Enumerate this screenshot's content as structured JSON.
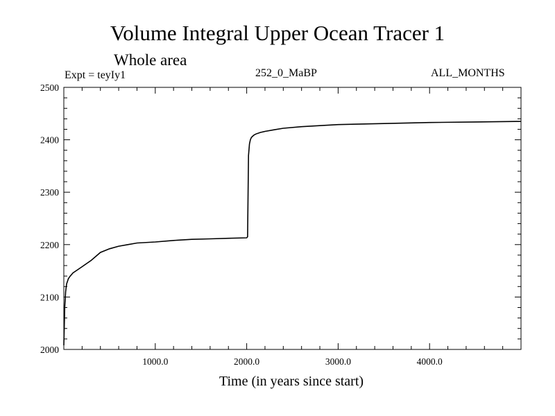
{
  "chart_data": {
    "type": "line",
    "title": "Volume Integral Upper Ocean Tracer 1",
    "subtitle": "Whole area",
    "annotations": {
      "left": "Expt = teyIy1",
      "center": "252_0_MaBP",
      "right": "ALL_MONTHS"
    },
    "xlabel": "Time (in years since start)",
    "ylabel": "",
    "xlim": [
      0,
      5000
    ],
    "ylim": [
      2000,
      2500
    ],
    "xticks": [
      1000,
      2000,
      3000,
      4000
    ],
    "xtick_labels": [
      "1000.0",
      "2000.0",
      "3000.0",
      "4000.0"
    ],
    "yticks": [
      2000,
      2100,
      2200,
      2300,
      2400,
      2500
    ],
    "ytick_labels": [
      "2000",
      "2100",
      "2200",
      "2300",
      "2400",
      "2500"
    ],
    "grid": false,
    "line_color": "#000000",
    "series": [
      {
        "x": [
          0,
          10,
          20,
          30,
          50,
          70,
          100,
          150,
          200,
          300,
          400,
          500,
          600,
          700,
          800,
          1000,
          1200,
          1400,
          1600,
          1800,
          2000,
          2010,
          2015,
          2020,
          2030,
          2040,
          2050,
          2060,
          2080,
          2100,
          2150,
          2200,
          2300,
          2400,
          2600,
          2800,
          3000,
          3500,
          4000,
          4500,
          5000
        ],
        "y": [
          2008,
          2080,
          2110,
          2125,
          2135,
          2140,
          2146,
          2152,
          2158,
          2170,
          2185,
          2192,
          2197,
          2200,
          2203,
          2205,
          2208,
          2210,
          2211,
          2212,
          2213,
          2215,
          2300,
          2370,
          2392,
          2400,
          2404,
          2406,
          2409,
          2411,
          2414,
          2416,
          2419,
          2422,
          2425,
          2427,
          2429,
          2431,
          2433,
          2434,
          2435
        ]
      }
    ]
  }
}
